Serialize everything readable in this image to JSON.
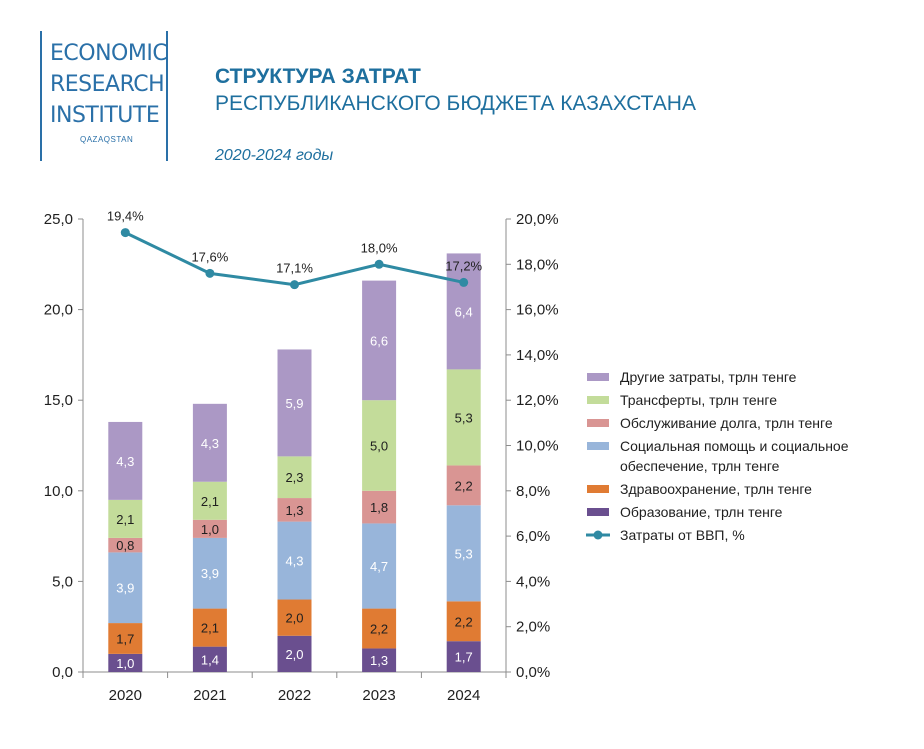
{
  "header": {
    "logo_lines": [
      "ECONOMIC",
      "RESEARCH",
      "INSTITUTE"
    ],
    "logo_sub": "QAZAQSTAN",
    "title_line1": "СТРУКТУРА ЗАТРАТ",
    "title_line2": "РЕСПУБЛИКАНСКОГО БЮДЖЕТА КАЗАХСТАНА",
    "period": "2020-2024 годы"
  },
  "chart_data": {
    "type": "bar",
    "stacked": true,
    "categories": [
      "2020",
      "2021",
      "2022",
      "2023",
      "2024"
    ],
    "series": [
      {
        "name": "Образование, трлн тенге",
        "color": "#6a4f8f",
        "values": [
          1.0,
          1.4,
          2.0,
          1.3,
          1.7
        ],
        "labels": [
          "1,0",
          "1,4",
          "2,0",
          "1,3",
          "1,7"
        ],
        "label_color": "#ffffff"
      },
      {
        "name": "Здравоохранение, трлн тенге",
        "color": "#e07b33",
        "values": [
          1.7,
          2.1,
          2.0,
          2.2,
          2.2
        ],
        "labels": [
          "1,7",
          "2,1",
          "2,0",
          "2,2",
          "2,2"
        ],
        "label_color": "#1f1f1f"
      },
      {
        "name": "Социальная помощь и социальное обеспечение, трлн тенге",
        "legend_lines": [
          "Социальная помощь и социальное",
          "обеспечение, трлн тенге"
        ],
        "color": "#98b5da",
        "values": [
          3.9,
          3.9,
          4.3,
          4.7,
          5.3
        ],
        "labels": [
          "3,9",
          "3,9",
          "4,3",
          "4,7",
          "5,3"
        ],
        "label_color": "#ffffff"
      },
      {
        "name": "Обслуживание долга, трлн тенге",
        "color": "#d99593",
        "values": [
          0.8,
          1.0,
          1.3,
          1.8,
          2.2
        ],
        "labels": [
          "0,8",
          "1,0",
          "1,3",
          "1,8",
          "2,2"
        ],
        "label_color": "#1f1f1f"
      },
      {
        "name": "Трансферты, трлн тенге",
        "color": "#c3dc9a",
        "values": [
          2.1,
          2.1,
          2.3,
          5.0,
          5.3
        ],
        "labels": [
          "2,1",
          "2,1",
          "2,3",
          "5,0",
          "5,3"
        ],
        "label_color": "#1f1f1f"
      },
      {
        "name": "Другие затраты, трлн тенге",
        "color": "#ab98c5",
        "values": [
          4.3,
          4.3,
          5.9,
          6.6,
          6.4
        ],
        "labels": [
          "4,3",
          "4,3",
          "5,9",
          "6,6",
          "6,4"
        ],
        "label_color": "#ffffff"
      }
    ],
    "line_series": {
      "name": "Затраты от ВВП, %",
      "color": "#2f8aa3",
      "values": [
        19.4,
        17.6,
        17.1,
        18.0,
        17.2
      ],
      "labels": [
        "19,4%",
        "17,6%",
        "17,1%",
        "18,0%",
        "17,2%"
      ],
      "axis": "right"
    },
    "ylim": [
      0,
      25
    ],
    "yticks": [
      "0,0",
      "5,0",
      "10,0",
      "15,0",
      "20,0",
      "25,0"
    ],
    "y2lim": [
      0,
      20
    ],
    "y2ticks": [
      "0,0%",
      "2,0%",
      "4,0%",
      "6,0%",
      "8,0%",
      "10,0%",
      "12,0%",
      "14,0%",
      "16,0%",
      "18,0%",
      "20,0%"
    ],
    "legend_order": [
      5,
      4,
      3,
      2,
      1,
      0,
      "line"
    ],
    "legend_position": "right",
    "grid": false
  }
}
